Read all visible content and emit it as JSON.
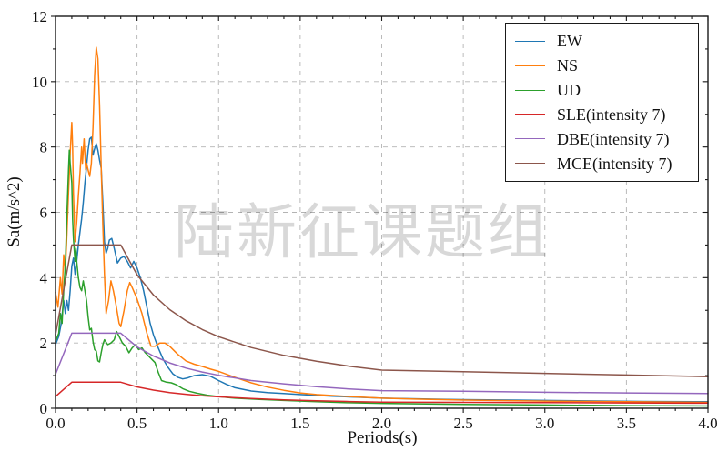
{
  "figure": {
    "watermark": "陆新征课题组",
    "background": "#ffffff"
  },
  "chart_data": {
    "type": "line",
    "title": "",
    "xlabel": "Periods(s)",
    "ylabel": "Sa(m/s^2)",
    "xlim": [
      0,
      4
    ],
    "ylim": [
      0,
      12
    ],
    "x_tick_labels": [
      "0.0",
      "0.5",
      "1.0",
      "1.5",
      "2.0",
      "2.5",
      "3.0",
      "3.5",
      "4.0"
    ],
    "y_tick_labels": [
      "0",
      "2",
      "4",
      "6",
      "8",
      "10",
      "12"
    ],
    "x_minor_step": 0.1,
    "y_minor_step": 1,
    "grid": true,
    "grid_style": "dashed",
    "grid_color": "#b3b3b3",
    "axis_color": "#1a1a1a",
    "legend_position": "upper right",
    "series": [
      {
        "name": "EW",
        "color": "#1f77b4",
        "points": [
          [
            0,
            1.95
          ],
          [
            0.02,
            2.2
          ],
          [
            0.035,
            2.6
          ],
          [
            0.05,
            3.3
          ],
          [
            0.06,
            2.9
          ],
          [
            0.07,
            3.3
          ],
          [
            0.08,
            3.0
          ],
          [
            0.09,
            3.6
          ],
          [
            0.1,
            4.35
          ],
          [
            0.11,
            4.6
          ],
          [
            0.12,
            4.1
          ],
          [
            0.13,
            4.5
          ],
          [
            0.14,
            5.0
          ],
          [
            0.15,
            5.4
          ],
          [
            0.16,
            5.8
          ],
          [
            0.17,
            6.3
          ],
          [
            0.18,
            6.9
          ],
          [
            0.19,
            7.4
          ],
          [
            0.2,
            7.9
          ],
          [
            0.21,
            8.25
          ],
          [
            0.22,
            8.3
          ],
          [
            0.23,
            7.75
          ],
          [
            0.24,
            7.95
          ],
          [
            0.25,
            8.1
          ],
          [
            0.26,
            7.9
          ],
          [
            0.27,
            7.6
          ],
          [
            0.28,
            7.35
          ],
          [
            0.29,
            6.3
          ],
          [
            0.3,
            5.1
          ],
          [
            0.31,
            4.75
          ],
          [
            0.32,
            4.9
          ],
          [
            0.33,
            5.15
          ],
          [
            0.345,
            5.2
          ],
          [
            0.36,
            4.9
          ],
          [
            0.38,
            4.45
          ],
          [
            0.4,
            4.6
          ],
          [
            0.42,
            4.65
          ],
          [
            0.44,
            4.5
          ],
          [
            0.46,
            4.3
          ],
          [
            0.48,
            4.5
          ],
          [
            0.5,
            4.3
          ],
          [
            0.52,
            4.0
          ],
          [
            0.54,
            3.6
          ],
          [
            0.56,
            3.1
          ],
          [
            0.58,
            2.6
          ],
          [
            0.6,
            2.25
          ],
          [
            0.63,
            1.85
          ],
          [
            0.66,
            1.5
          ],
          [
            0.69,
            1.25
          ],
          [
            0.72,
            1.05
          ],
          [
            0.75,
            0.95
          ],
          [
            0.78,
            0.9
          ],
          [
            0.81,
            0.93
          ],
          [
            0.85,
            1.0
          ],
          [
            0.9,
            1.03
          ],
          [
            0.95,
            0.98
          ],
          [
            1.0,
            0.85
          ],
          [
            1.05,
            0.73
          ],
          [
            1.1,
            0.63
          ],
          [
            1.2,
            0.53
          ],
          [
            1.3,
            0.48
          ],
          [
            1.4,
            0.45
          ],
          [
            1.5,
            0.42
          ],
          [
            1.7,
            0.37
          ],
          [
            2.0,
            0.31
          ],
          [
            2.4,
            0.27
          ],
          [
            2.8,
            0.25
          ],
          [
            3.2,
            0.23
          ],
          [
            3.6,
            0.21
          ],
          [
            4.0,
            0.2
          ]
        ]
      },
      {
        "name": "NS",
        "color": "#ff7f0e",
        "points": [
          [
            0,
            3.55
          ],
          [
            0.015,
            3.1
          ],
          [
            0.03,
            4.0
          ],
          [
            0.04,
            3.5
          ],
          [
            0.05,
            4.7
          ],
          [
            0.06,
            4.2
          ],
          [
            0.07,
            5.3
          ],
          [
            0.08,
            6.6
          ],
          [
            0.09,
            7.8
          ],
          [
            0.1,
            8.75
          ],
          [
            0.105,
            8.0
          ],
          [
            0.11,
            6.6
          ],
          [
            0.12,
            5.1
          ],
          [
            0.13,
            5.7
          ],
          [
            0.14,
            6.5
          ],
          [
            0.15,
            7.2
          ],
          [
            0.16,
            8.0
          ],
          [
            0.165,
            7.5
          ],
          [
            0.175,
            8.25
          ],
          [
            0.185,
            7.3
          ],
          [
            0.19,
            7.5
          ],
          [
            0.2,
            7.3
          ],
          [
            0.21,
            7.1
          ],
          [
            0.22,
            7.5
          ],
          [
            0.23,
            8.6
          ],
          [
            0.24,
            10.2
          ],
          [
            0.25,
            11.05
          ],
          [
            0.26,
            10.7
          ],
          [
            0.27,
            9.3
          ],
          [
            0.28,
            7.4
          ],
          [
            0.29,
            5.6
          ],
          [
            0.3,
            4.1
          ],
          [
            0.31,
            2.9
          ],
          [
            0.325,
            3.3
          ],
          [
            0.34,
            3.9
          ],
          [
            0.355,
            3.6
          ],
          [
            0.37,
            3.2
          ],
          [
            0.39,
            2.6
          ],
          [
            0.4,
            2.5
          ],
          [
            0.42,
            3.0
          ],
          [
            0.44,
            3.6
          ],
          [
            0.455,
            3.85
          ],
          [
            0.47,
            3.7
          ],
          [
            0.5,
            3.35
          ],
          [
            0.53,
            2.9
          ],
          [
            0.56,
            2.3
          ],
          [
            0.585,
            1.9
          ],
          [
            0.61,
            1.9
          ],
          [
            0.64,
            2.0
          ],
          [
            0.67,
            2.0
          ],
          [
            0.7,
            1.9
          ],
          [
            0.75,
            1.65
          ],
          [
            0.8,
            1.45
          ],
          [
            0.85,
            1.35
          ],
          [
            0.9,
            1.28
          ],
          [
            0.95,
            1.2
          ],
          [
            1.0,
            1.13
          ],
          [
            1.1,
            0.95
          ],
          [
            1.2,
            0.78
          ],
          [
            1.3,
            0.65
          ],
          [
            1.4,
            0.55
          ],
          [
            1.5,
            0.47
          ],
          [
            1.6,
            0.42
          ],
          [
            1.8,
            0.36
          ],
          [
            2.0,
            0.31
          ],
          [
            2.2,
            0.28
          ],
          [
            2.5,
            0.25
          ],
          [
            3.0,
            0.22
          ],
          [
            3.5,
            0.2
          ],
          [
            4.0,
            0.18
          ]
        ]
      },
      {
        "name": "UD",
        "color": "#2ca02c",
        "points": [
          [
            0,
            2.05
          ],
          [
            0.02,
            2.3
          ],
          [
            0.03,
            2.9
          ],
          [
            0.04,
            2.6
          ],
          [
            0.05,
            3.6
          ],
          [
            0.06,
            4.4
          ],
          [
            0.07,
            5.9
          ],
          [
            0.08,
            7.3
          ],
          [
            0.085,
            7.9
          ],
          [
            0.09,
            7.5
          ],
          [
            0.1,
            6.9
          ],
          [
            0.105,
            5.8
          ],
          [
            0.11,
            5.2
          ],
          [
            0.12,
            4.5
          ],
          [
            0.125,
            4.9
          ],
          [
            0.13,
            4.5
          ],
          [
            0.14,
            4.0
          ],
          [
            0.15,
            3.7
          ],
          [
            0.16,
            3.6
          ],
          [
            0.17,
            3.9
          ],
          [
            0.18,
            3.6
          ],
          [
            0.19,
            3.3
          ],
          [
            0.2,
            2.8
          ],
          [
            0.21,
            2.4
          ],
          [
            0.22,
            2.45
          ],
          [
            0.23,
            2.05
          ],
          [
            0.24,
            1.8
          ],
          [
            0.25,
            1.75
          ],
          [
            0.26,
            1.45
          ],
          [
            0.27,
            1.42
          ],
          [
            0.28,
            1.7
          ],
          [
            0.29,
            1.95
          ],
          [
            0.3,
            2.1
          ],
          [
            0.32,
            1.95
          ],
          [
            0.34,
            2.0
          ],
          [
            0.36,
            2.1
          ],
          [
            0.375,
            2.35
          ],
          [
            0.39,
            2.2
          ],
          [
            0.41,
            2.0
          ],
          [
            0.43,
            1.9
          ],
          [
            0.45,
            1.7
          ],
          [
            0.47,
            1.85
          ],
          [
            0.49,
            1.95
          ],
          [
            0.51,
            1.8
          ],
          [
            0.53,
            1.85
          ],
          [
            0.55,
            1.7
          ],
          [
            0.58,
            1.55
          ],
          [
            0.61,
            1.4
          ],
          [
            0.63,
            1.1
          ],
          [
            0.65,
            0.85
          ],
          [
            0.68,
            0.8
          ],
          [
            0.71,
            0.78
          ],
          [
            0.74,
            0.72
          ],
          [
            0.78,
            0.6
          ],
          [
            0.82,
            0.52
          ],
          [
            0.87,
            0.46
          ],
          [
            0.93,
            0.4
          ],
          [
            1.0,
            0.36
          ],
          [
            1.1,
            0.31
          ],
          [
            1.25,
            0.27
          ],
          [
            1.4,
            0.24
          ],
          [
            1.6,
            0.2
          ],
          [
            1.8,
            0.17
          ],
          [
            2.0,
            0.15
          ],
          [
            2.5,
            0.12
          ],
          [
            3.0,
            0.1
          ],
          [
            3.5,
            0.08
          ],
          [
            4.0,
            0.07
          ]
        ]
      },
      {
        "name": "SLE(intensity 7)",
        "color": "#d62728",
        "points": [
          [
            0,
            0.36
          ],
          [
            0.1,
            0.8
          ],
          [
            0.4,
            0.8
          ],
          [
            0.5,
            0.655
          ],
          [
            0.6,
            0.556
          ],
          [
            0.7,
            0.483
          ],
          [
            0.8,
            0.429
          ],
          [
            0.9,
            0.385
          ],
          [
            1.0,
            0.351
          ],
          [
            1.2,
            0.297
          ],
          [
            1.4,
            0.26
          ],
          [
            1.6,
            0.23
          ],
          [
            1.8,
            0.207
          ],
          [
            2.0,
            0.188
          ],
          [
            2.5,
            0.18
          ],
          [
            3.0,
            0.172
          ],
          [
            3.5,
            0.164
          ],
          [
            4.0,
            0.156
          ]
        ]
      },
      {
        "name": "DBE(intensity 7)",
        "color": "#9467bd",
        "points": [
          [
            0,
            1.04
          ],
          [
            0.1,
            2.3
          ],
          [
            0.4,
            2.3
          ],
          [
            0.5,
            1.88
          ],
          [
            0.6,
            1.6
          ],
          [
            0.7,
            1.39
          ],
          [
            0.8,
            1.23
          ],
          [
            0.9,
            1.11
          ],
          [
            1.0,
            1.01
          ],
          [
            1.2,
            0.85
          ],
          [
            1.4,
            0.75
          ],
          [
            1.6,
            0.66
          ],
          [
            1.8,
            0.59
          ],
          [
            2.0,
            0.54
          ],
          [
            2.5,
            0.52
          ],
          [
            3.0,
            0.49
          ],
          [
            3.5,
            0.47
          ],
          [
            4.0,
            0.45
          ]
        ]
      },
      {
        "name": "MCE(intensity 7)",
        "color": "#8c564b",
        "points": [
          [
            0,
            2.25
          ],
          [
            0.1,
            5.0
          ],
          [
            0.4,
            5.0
          ],
          [
            0.5,
            4.09
          ],
          [
            0.6,
            3.47
          ],
          [
            0.7,
            3.02
          ],
          [
            0.8,
            2.68
          ],
          [
            0.9,
            2.41
          ],
          [
            1.0,
            2.19
          ],
          [
            1.2,
            1.86
          ],
          [
            1.4,
            1.62
          ],
          [
            1.6,
            1.44
          ],
          [
            1.8,
            1.29
          ],
          [
            2.0,
            1.17
          ],
          [
            2.5,
            1.12
          ],
          [
            3.0,
            1.07
          ],
          [
            3.5,
            1.02
          ],
          [
            4.0,
            0.97
          ]
        ]
      }
    ]
  }
}
